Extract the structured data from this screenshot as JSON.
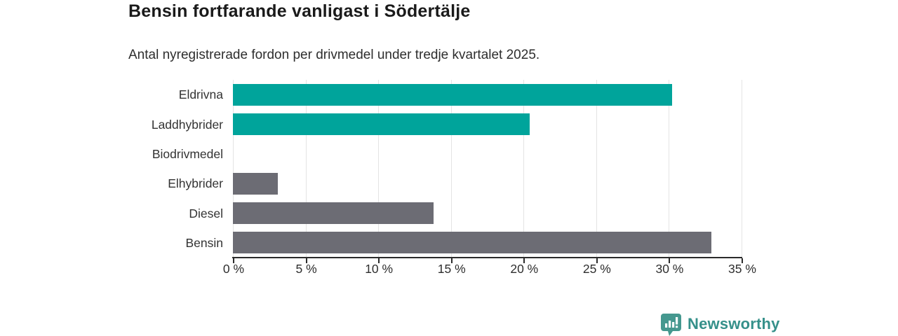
{
  "chart_data": {
    "type": "bar",
    "orientation": "horizontal",
    "title": "Bensin fortfarande vanligast i Södertälje",
    "subtitle": "Antal nyregistrerade fordon per drivmedel under tredje kvartalet 2025.",
    "categories": [
      "Eldrivna",
      "Laddhybrider",
      "Biodrivmedel",
      "Elhybrider",
      "Diesel",
      "Bensin"
    ],
    "values": [
      30.2,
      20.4,
      0,
      3.1,
      13.8,
      32.9
    ],
    "unit": "%",
    "bar_colors": [
      "#00a49b",
      "#00a49b",
      "#6c6c74",
      "#6c6c74",
      "#6c6c74",
      "#6c6c74"
    ],
    "xlim": [
      0,
      35
    ],
    "x_ticks": [
      0,
      5,
      10,
      15,
      20,
      25,
      30,
      35
    ],
    "x_tick_labels": [
      "0 %",
      "5 %",
      "10 %",
      "15 %",
      "20 %",
      "25 %",
      "30 %",
      "35 %"
    ],
    "xlabel": "",
    "ylabel": "",
    "grid": "vertical",
    "legend": "none"
  },
  "colors": {
    "accent_teal": "#00a49b",
    "neutral_gray": "#6c6c74",
    "gridline": "#e4e4e4",
    "axis": "#2b2b2b",
    "title_text": "#1a1a1a",
    "body_text": "#2e2e2e"
  },
  "branding": {
    "name": "Newsworthy",
    "icon": "newsworthy-speech-bubble-chart-icon",
    "icon_color": "#45988f",
    "text_color": "#35908a"
  }
}
